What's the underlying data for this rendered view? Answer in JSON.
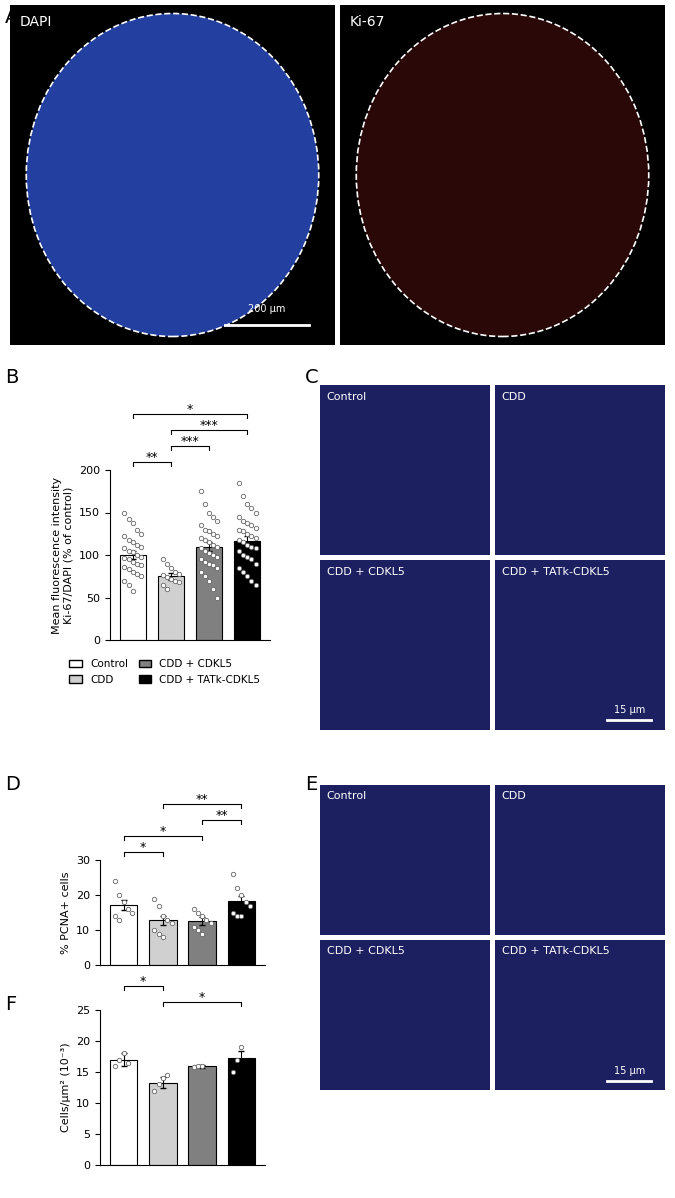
{
  "panels": [
    {
      "label": "A",
      "images": [
        "DAPI",
        "Ki-67"
      ],
      "scale_bar": "200 µm"
    },
    {
      "label": "C",
      "images": [
        "Control",
        "CDD",
        "CDD + CDKL5",
        "CDD + TATk-CDKL5"
      ],
      "scale_bar": "15 µm"
    },
    {
      "label": "E",
      "images": [
        "Control",
        "CDD",
        "CDD + CDKL5",
        "CDD + TATk-CDKL5"
      ],
      "scale_bar": "15 µm"
    }
  ],
  "chart_data": [
    {
      "label": "B",
      "type": "bar",
      "categories": [
        "Control",
        "CDD",
        "CDD + CDKL5",
        "CDD + TATk-CDKL5"
      ],
      "colors": [
        "#ffffff",
        "#d0d0d0",
        "#808080",
        "#000000"
      ],
      "values": [
        100,
        75,
        110,
        116
      ],
      "errors": [
        5,
        4,
        5,
        6
      ],
      "points": [
        [
          150,
          142,
          138,
          130,
          125,
          122,
          118,
          115,
          112,
          110,
          108,
          105,
          103,
          100,
          98,
          96,
          95,
          92,
          90,
          88,
          86,
          84,
          80,
          78,
          75,
          70,
          65,
          58
        ],
        [
          95,
          90,
          85,
          80,
          78,
          76,
          74,
          72,
          70,
          68,
          65,
          60
        ],
        [
          175,
          160,
          150,
          145,
          140,
          135,
          130,
          128,
          125,
          122,
          120,
          118,
          115,
          112,
          110,
          108,
          105,
          102,
          100,
          98,
          95,
          92,
          90,
          88,
          85,
          80,
          75,
          70,
          60,
          50
        ],
        [
          185,
          170,
          160,
          155,
          150,
          145,
          140,
          138,
          135,
          132,
          130,
          128,
          125,
          122,
          120,
          118,
          115,
          112,
          110,
          108,
          105,
          100,
          98,
          95,
          90,
          85,
          80,
          75,
          70,
          65
        ]
      ],
      "ylabel": "Mean fluorescence intensity\nKi-67/DAPI (% of control)",
      "ylim": [
        0,
        200
      ],
      "yticks": [
        0,
        50,
        100,
        150,
        200
      ],
      "tick_labels": "y",
      "legend": "upper left",
      "significance": [
        {
          "pair": [
            "Control",
            "CDD"
          ],
          "label": "**"
        },
        {
          "pair": [
            "CDD",
            "CDD + CDKL5"
          ],
          "label": "***"
        },
        {
          "pair": [
            "CDD",
            "CDD + TATk-CDKL5"
          ],
          "label": "***"
        },
        {
          "pair": [
            "Control",
            "CDD + TATk-CDKL5"
          ],
          "label": "*"
        }
      ]
    },
    {
      "label": "D",
      "type": "bar",
      "categories": [
        "Control",
        "CDD",
        "CDD + CDKL5",
        "CDD + TATk-CDKL5"
      ],
      "colors": [
        "#ffffff",
        "#d0d0d0",
        "#808080",
        "#000000"
      ],
      "values": [
        17.2,
        12.8,
        12.6,
        18.2
      ],
      "errors": [
        1.5,
        1.3,
        1.2,
        1.5
      ],
      "points": [
        [
          24,
          20,
          18,
          16,
          15,
          14,
          13
        ],
        [
          19,
          17,
          14,
          13,
          12,
          10,
          9,
          8
        ],
        [
          16,
          15,
          14,
          13,
          12,
          11,
          10,
          9
        ],
        [
          26,
          22,
          20,
          18,
          17,
          15,
          14,
          14
        ]
      ],
      "ylabel": "% PCNA+ cells",
      "ylim": [
        0,
        30
      ],
      "yticks": [
        0,
        10,
        20,
        30
      ],
      "tick_labels": "y",
      "significance": [
        {
          "pair": [
            "Control",
            "CDD"
          ],
          "label": "*"
        },
        {
          "pair": [
            "Control",
            "CDD + CDKL5"
          ],
          "label": "*"
        },
        {
          "pair": [
            "CDD + CDKL5",
            "CDD + TATk-CDKL5"
          ],
          "label": "**"
        },
        {
          "pair": [
            "CDD",
            "CDD + TATk-CDKL5"
          ],
          "label": "**"
        }
      ]
    },
    {
      "label": "F",
      "type": "bar",
      "categories": [
        "Control",
        "CDD",
        "CDD + CDKL5",
        "CDD + TATk-CDKL5"
      ],
      "colors": [
        "#ffffff",
        "#d0d0d0",
        "#808080",
        "#000000"
      ],
      "values": [
        17,
        13.3,
        15.9,
        17.2
      ],
      "errors": [
        1,
        0.9,
        0.2,
        1.2
      ],
      "points": [
        [
          16,
          17,
          18,
          16.5
        ],
        [
          12,
          13,
          14,
          14.5
        ],
        [
          15.8,
          16,
          15.9
        ],
        [
          15,
          17,
          19
        ]
      ],
      "ylabel": "Cells/µm² (10⁻³)",
      "ylim": [
        0,
        25
      ],
      "yticks": [
        0,
        5,
        10,
        15,
        20,
        25
      ],
      "tick_labels": "y",
      "significance": [
        {
          "pair": [
            "CDD",
            "CDD + TATk-CDKL5"
          ],
          "label": "*"
        },
        {
          "pair": [
            "Control",
            "CDD"
          ],
          "label": "*"
        }
      ]
    }
  ]
}
